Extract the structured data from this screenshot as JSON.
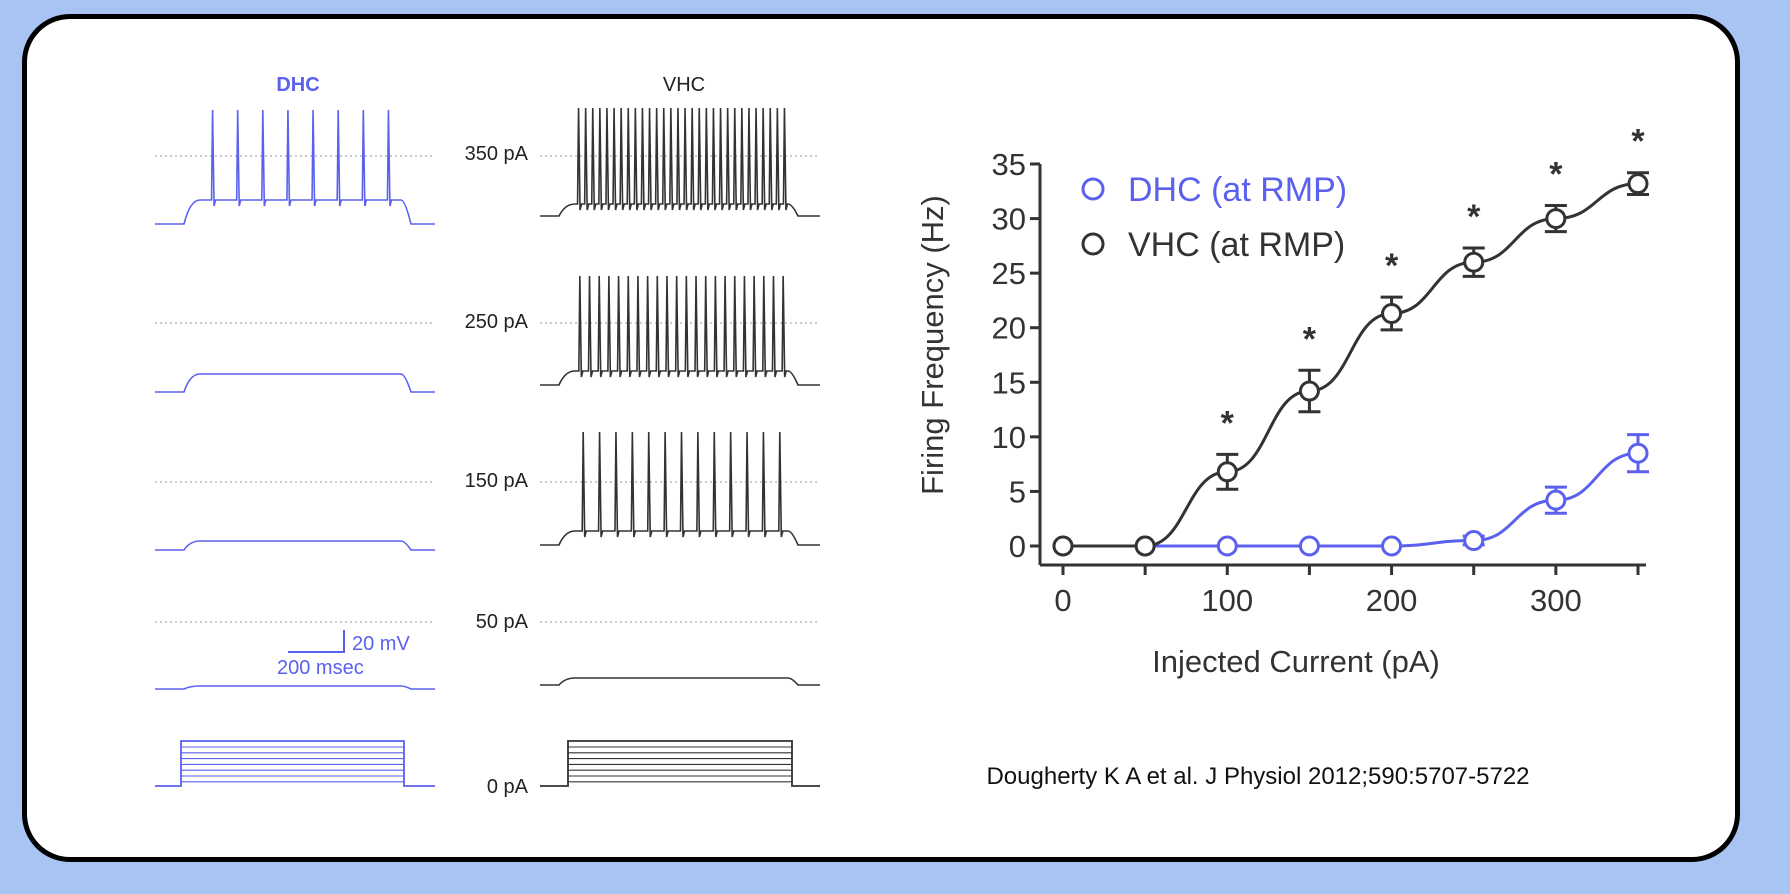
{
  "colors": {
    "background": "#a8c4f2",
    "card": "#ffffff",
    "dhc": "#5b61ee",
    "vhc": "#333333",
    "dotted": "#aaaaaa"
  },
  "traces": {
    "dhc_header": "DHC",
    "vhc_header": "VHC",
    "current_labels": [
      "350 pA",
      "250 pA",
      "150 pA",
      "50 pA",
      "0 pA"
    ],
    "dhc_spike_counts": [
      8,
      0,
      0,
      0
    ],
    "vhc_spike_counts": [
      30,
      22,
      13,
      0
    ],
    "scale_bar": {
      "voltage": "20 mV",
      "time": "200 msec"
    }
  },
  "chart_data": {
    "type": "line",
    "xlabel": "Injected Current (pA)",
    "ylabel": "Firing Frequency (Hz)",
    "xlim": [
      0,
      350
    ],
    "ylim": [
      0,
      35
    ],
    "xticks": [
      0,
      100,
      200,
      300
    ],
    "yticks": [
      0,
      5,
      10,
      15,
      20,
      25,
      30,
      35
    ],
    "x": [
      0,
      50,
      100,
      150,
      200,
      250,
      300,
      350
    ],
    "series": [
      {
        "name": "DHC (at RMP)",
        "color": "#5b61ee",
        "values": [
          0,
          0,
          0,
          0,
          0,
          0.5,
          4.2,
          8.5
        ],
        "errors": [
          0,
          0,
          0,
          0,
          0,
          0.4,
          1.2,
          1.7
        ]
      },
      {
        "name": "VHC (at RMP)",
        "color": "#333333",
        "values": [
          0,
          0,
          6.8,
          14.2,
          21.3,
          26.0,
          30.0,
          33.2
        ],
        "errors": [
          0,
          0,
          1.6,
          1.9,
          1.5,
          1.3,
          1.2,
          1.0
        ]
      }
    ],
    "significance": {
      "marker": "*",
      "x": [
        100,
        150,
        200,
        250,
        300,
        350
      ]
    },
    "legend_position": "top-left"
  },
  "citation": "Dougherty K A et al. J Physiol 2012;590:5707-5722"
}
